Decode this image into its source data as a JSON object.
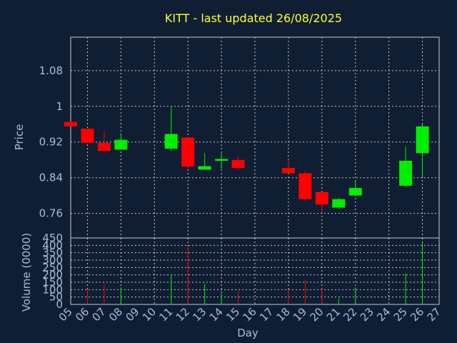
{
  "chart_data": {
    "type": "candlestick",
    "title": "KITT - last updated 26/08/2025",
    "xlabel": "Day",
    "price_panel": {
      "ylabel": "Price",
      "ylim": [
        0.705,
        1.155
      ],
      "yticks": [
        "1.08",
        "1",
        "0.92",
        "0.84",
        "0.76"
      ],
      "ytick_values": [
        1.08,
        1.0,
        0.92,
        0.84,
        0.76
      ],
      "up_color": "#00ee00",
      "down_color": "#ff0000",
      "grid": true
    },
    "volume_panel": {
      "ylabel": "Volume (0000)",
      "ylim": [
        0,
        450
      ],
      "yticks": [
        "450",
        "400",
        "350",
        "300",
        "250",
        "200",
        "150",
        "100",
        "50",
        "0"
      ],
      "ytick_values": [
        450,
        400,
        350,
        300,
        250,
        200,
        150,
        100,
        50,
        0
      ],
      "grid": true
    },
    "xticks": [
      "05",
      "06",
      "07",
      "08",
      "09",
      "10",
      "11",
      "12",
      "13",
      "14",
      "15",
      "16",
      "17",
      "18",
      "19",
      "20",
      "21",
      "22",
      "23",
      "24",
      "25",
      "26",
      "27"
    ],
    "candles": [
      {
        "day": "05",
        "open": 0.965,
        "close": 0.955,
        "high": 0.965,
        "low": 0.955,
        "volume": 0
      },
      {
        "day": "06",
        "open": 0.95,
        "close": 0.918,
        "high": 0.95,
        "low": 0.918,
        "volume": 100
      },
      {
        "day": "07",
        "open": 0.918,
        "close": 0.9,
        "high": 0.945,
        "low": 0.895,
        "volume": 140
      },
      {
        "day": "08",
        "open": 0.903,
        "close": 0.925,
        "high": 0.94,
        "low": 0.903,
        "volume": 115
      },
      {
        "day": "11",
        "open": 0.905,
        "close": 0.938,
        "high": 1.0,
        "low": 0.9,
        "volume": 195
      },
      {
        "day": "12",
        "open": 0.93,
        "close": 0.865,
        "high": 0.93,
        "low": 0.86,
        "volume": 395
      },
      {
        "day": "13",
        "open": 0.858,
        "close": 0.866,
        "high": 0.895,
        "low": 0.858,
        "volume": 140
      },
      {
        "day": "14",
        "open": 0.878,
        "close": 0.882,
        "high": 0.895,
        "low": 0.86,
        "volume": 75
      },
      {
        "day": "15",
        "open": 0.88,
        "close": 0.862,
        "high": 0.888,
        "low": 0.858,
        "volume": 90
      },
      {
        "day": "18",
        "open": 0.862,
        "close": 0.85,
        "high": 0.88,
        "low": 0.85,
        "volume": 95
      },
      {
        "day": "19",
        "open": 0.85,
        "close": 0.792,
        "high": 0.855,
        "low": 0.788,
        "volume": 165
      },
      {
        "day": "20",
        "open": 0.808,
        "close": 0.78,
        "high": 0.808,
        "low": 0.762,
        "volume": 105
      },
      {
        "day": "21",
        "open": 0.773,
        "close": 0.792,
        "high": 0.795,
        "low": 0.77,
        "volume": 40
      },
      {
        "day": "22",
        "open": 0.8,
        "close": 0.817,
        "high": 0.835,
        "low": 0.8,
        "volume": 115
      },
      {
        "day": "25",
        "open": 0.822,
        "close": 0.878,
        "high": 0.91,
        "low": 0.82,
        "volume": 210
      },
      {
        "day": "26",
        "open": 0.895,
        "close": 0.955,
        "high": 0.96,
        "low": 0.842,
        "volume": 415
      }
    ]
  }
}
